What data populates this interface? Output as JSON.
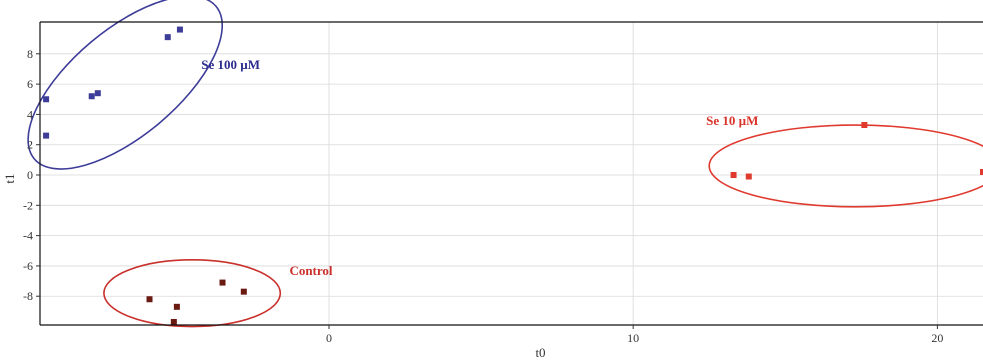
{
  "chart_data": {
    "type": "scatter",
    "title": "",
    "xlabel": "t0",
    "ylabel": "t1",
    "xlim": [
      -9.5,
      21.5
    ],
    "ylim": [
      -9.9,
      10.1
    ],
    "x_ticks": [
      0,
      10,
      20
    ],
    "y_ticks": [
      -8,
      -6,
      -4,
      -2,
      0,
      2,
      4,
      6,
      8
    ],
    "grid": true,
    "series": [
      {
        "name": "Se 100 µM",
        "color": "#3d3d99",
        "points": [
          {
            "x": -9.3,
            "y": 5.0
          },
          {
            "x": -9.3,
            "y": 2.6
          },
          {
            "x": -7.8,
            "y": 5.2
          },
          {
            "x": -7.6,
            "y": 5.4
          },
          {
            "x": -5.3,
            "y": 9.1
          },
          {
            "x": -4.9,
            "y": 9.6
          }
        ],
        "ellipse": {
          "cx": -6.7,
          "cy": 6.1,
          "rx": 3.9,
          "ry": 3.5,
          "rotate": -40
        }
      },
      {
        "name": "Se 10 µM",
        "color": "#e03a2f",
        "points": [
          {
            "x": 13.3,
            "y": 0.0
          },
          {
            "x": 13.8,
            "y": -0.1
          },
          {
            "x": 17.6,
            "y": 3.3
          },
          {
            "x": 21.5,
            "y": 0.2
          }
        ],
        "ellipse": {
          "cx": 17.3,
          "cy": 0.6,
          "rx": 4.8,
          "ry": 2.7,
          "rotate": 0
        }
      },
      {
        "name": "Control",
        "color": "#6b1a12",
        "points": [
          {
            "x": -5.9,
            "y": -8.2
          },
          {
            "x": -5.0,
            "y": -8.7
          },
          {
            "x": -5.1,
            "y": -9.7
          },
          {
            "x": -3.5,
            "y": -7.1
          },
          {
            "x": -2.8,
            "y": -7.7
          }
        ],
        "ellipse": {
          "cx": -4.5,
          "cy": -7.8,
          "rx": 2.9,
          "ry": 2.2,
          "rotate": 0
        }
      }
    ],
    "annotations": [
      {
        "text": "Se 100 µM",
        "x": -4.2,
        "y": 7.0,
        "color": "#2c2c8f"
      },
      {
        "text": "Se 10 µM",
        "x": 12.4,
        "y": 3.3,
        "color": "#d9342b"
      },
      {
        "text": "Control",
        "x": -1.3,
        "y": -6.6,
        "color": "#c9302c"
      }
    ]
  }
}
